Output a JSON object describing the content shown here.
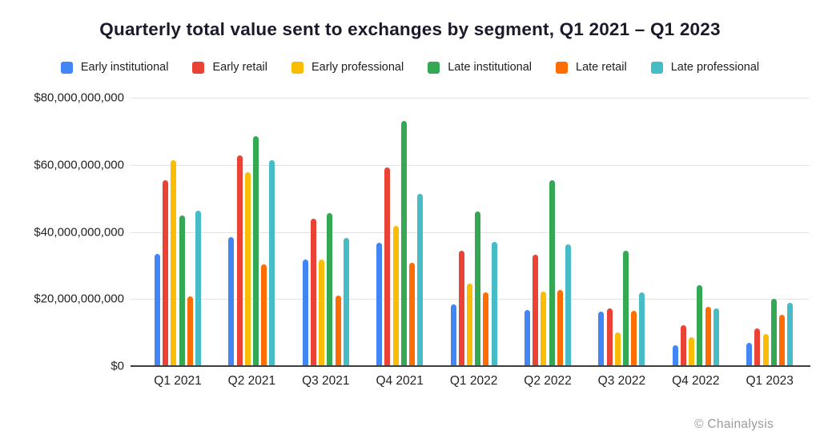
{
  "title": "Quarterly total value sent to exchanges by segment, Q1 2021 – Q1 2023",
  "footer": {
    "attribution": "© Chainalysis"
  },
  "chart_data": {
    "type": "bar",
    "title": "Quarterly total value sent to exchanges by segment, Q1 2021 – Q1 2023",
    "xlabel": "",
    "ylabel": "",
    "values_unit": "USD billions",
    "ylim": [
      0,
      80
    ],
    "grid": true,
    "legend_position": "top",
    "yticks": [
      {
        "value": 0,
        "label": "$0"
      },
      {
        "value": 20,
        "label": "$20,000,000,000"
      },
      {
        "value": 40,
        "label": "$40,000,000,000"
      },
      {
        "value": 60,
        "label": "$60,000,000,000"
      },
      {
        "value": 80,
        "label": "$80,000,000,000"
      }
    ],
    "categories": [
      "Q1 2021",
      "Q2 2021",
      "Q3 2021",
      "Q4 2021",
      "Q1 2022",
      "Q2 2022",
      "Q3 2022",
      "Q4 2022",
      "Q1 2023"
    ],
    "series": [
      {
        "name": "Early institutional",
        "color": "#4285F4",
        "values": [
          33.5,
          38.5,
          31.8,
          36.7,
          18.3,
          16.7,
          16.3,
          6.3,
          7.0
        ]
      },
      {
        "name": "Early retail",
        "color": "#EA4335",
        "values": [
          55.3,
          62.7,
          44.0,
          59.3,
          34.3,
          33.3,
          17.3,
          12.3,
          11.3
        ]
      },
      {
        "name": "Early professional",
        "color": "#FBBC04",
        "values": [
          61.3,
          57.7,
          31.8,
          41.8,
          24.5,
          22.3,
          10.0,
          8.5,
          9.5
        ]
      },
      {
        "name": "Late institutional",
        "color": "#34A853",
        "values": [
          44.8,
          68.5,
          45.5,
          73.0,
          46.2,
          55.3,
          34.3,
          24.2,
          20.0
        ]
      },
      {
        "name": "Late retail",
        "color": "#FF6D01",
        "values": [
          20.8,
          30.3,
          21.0,
          30.7,
          22.0,
          22.8,
          16.4,
          17.6,
          15.3
        ]
      },
      {
        "name": "Late professional",
        "color": "#46BDC6",
        "values": [
          46.4,
          61.3,
          38.3,
          51.3,
          37.0,
          36.3,
          21.9,
          17.1,
          18.8
        ]
      }
    ]
  }
}
